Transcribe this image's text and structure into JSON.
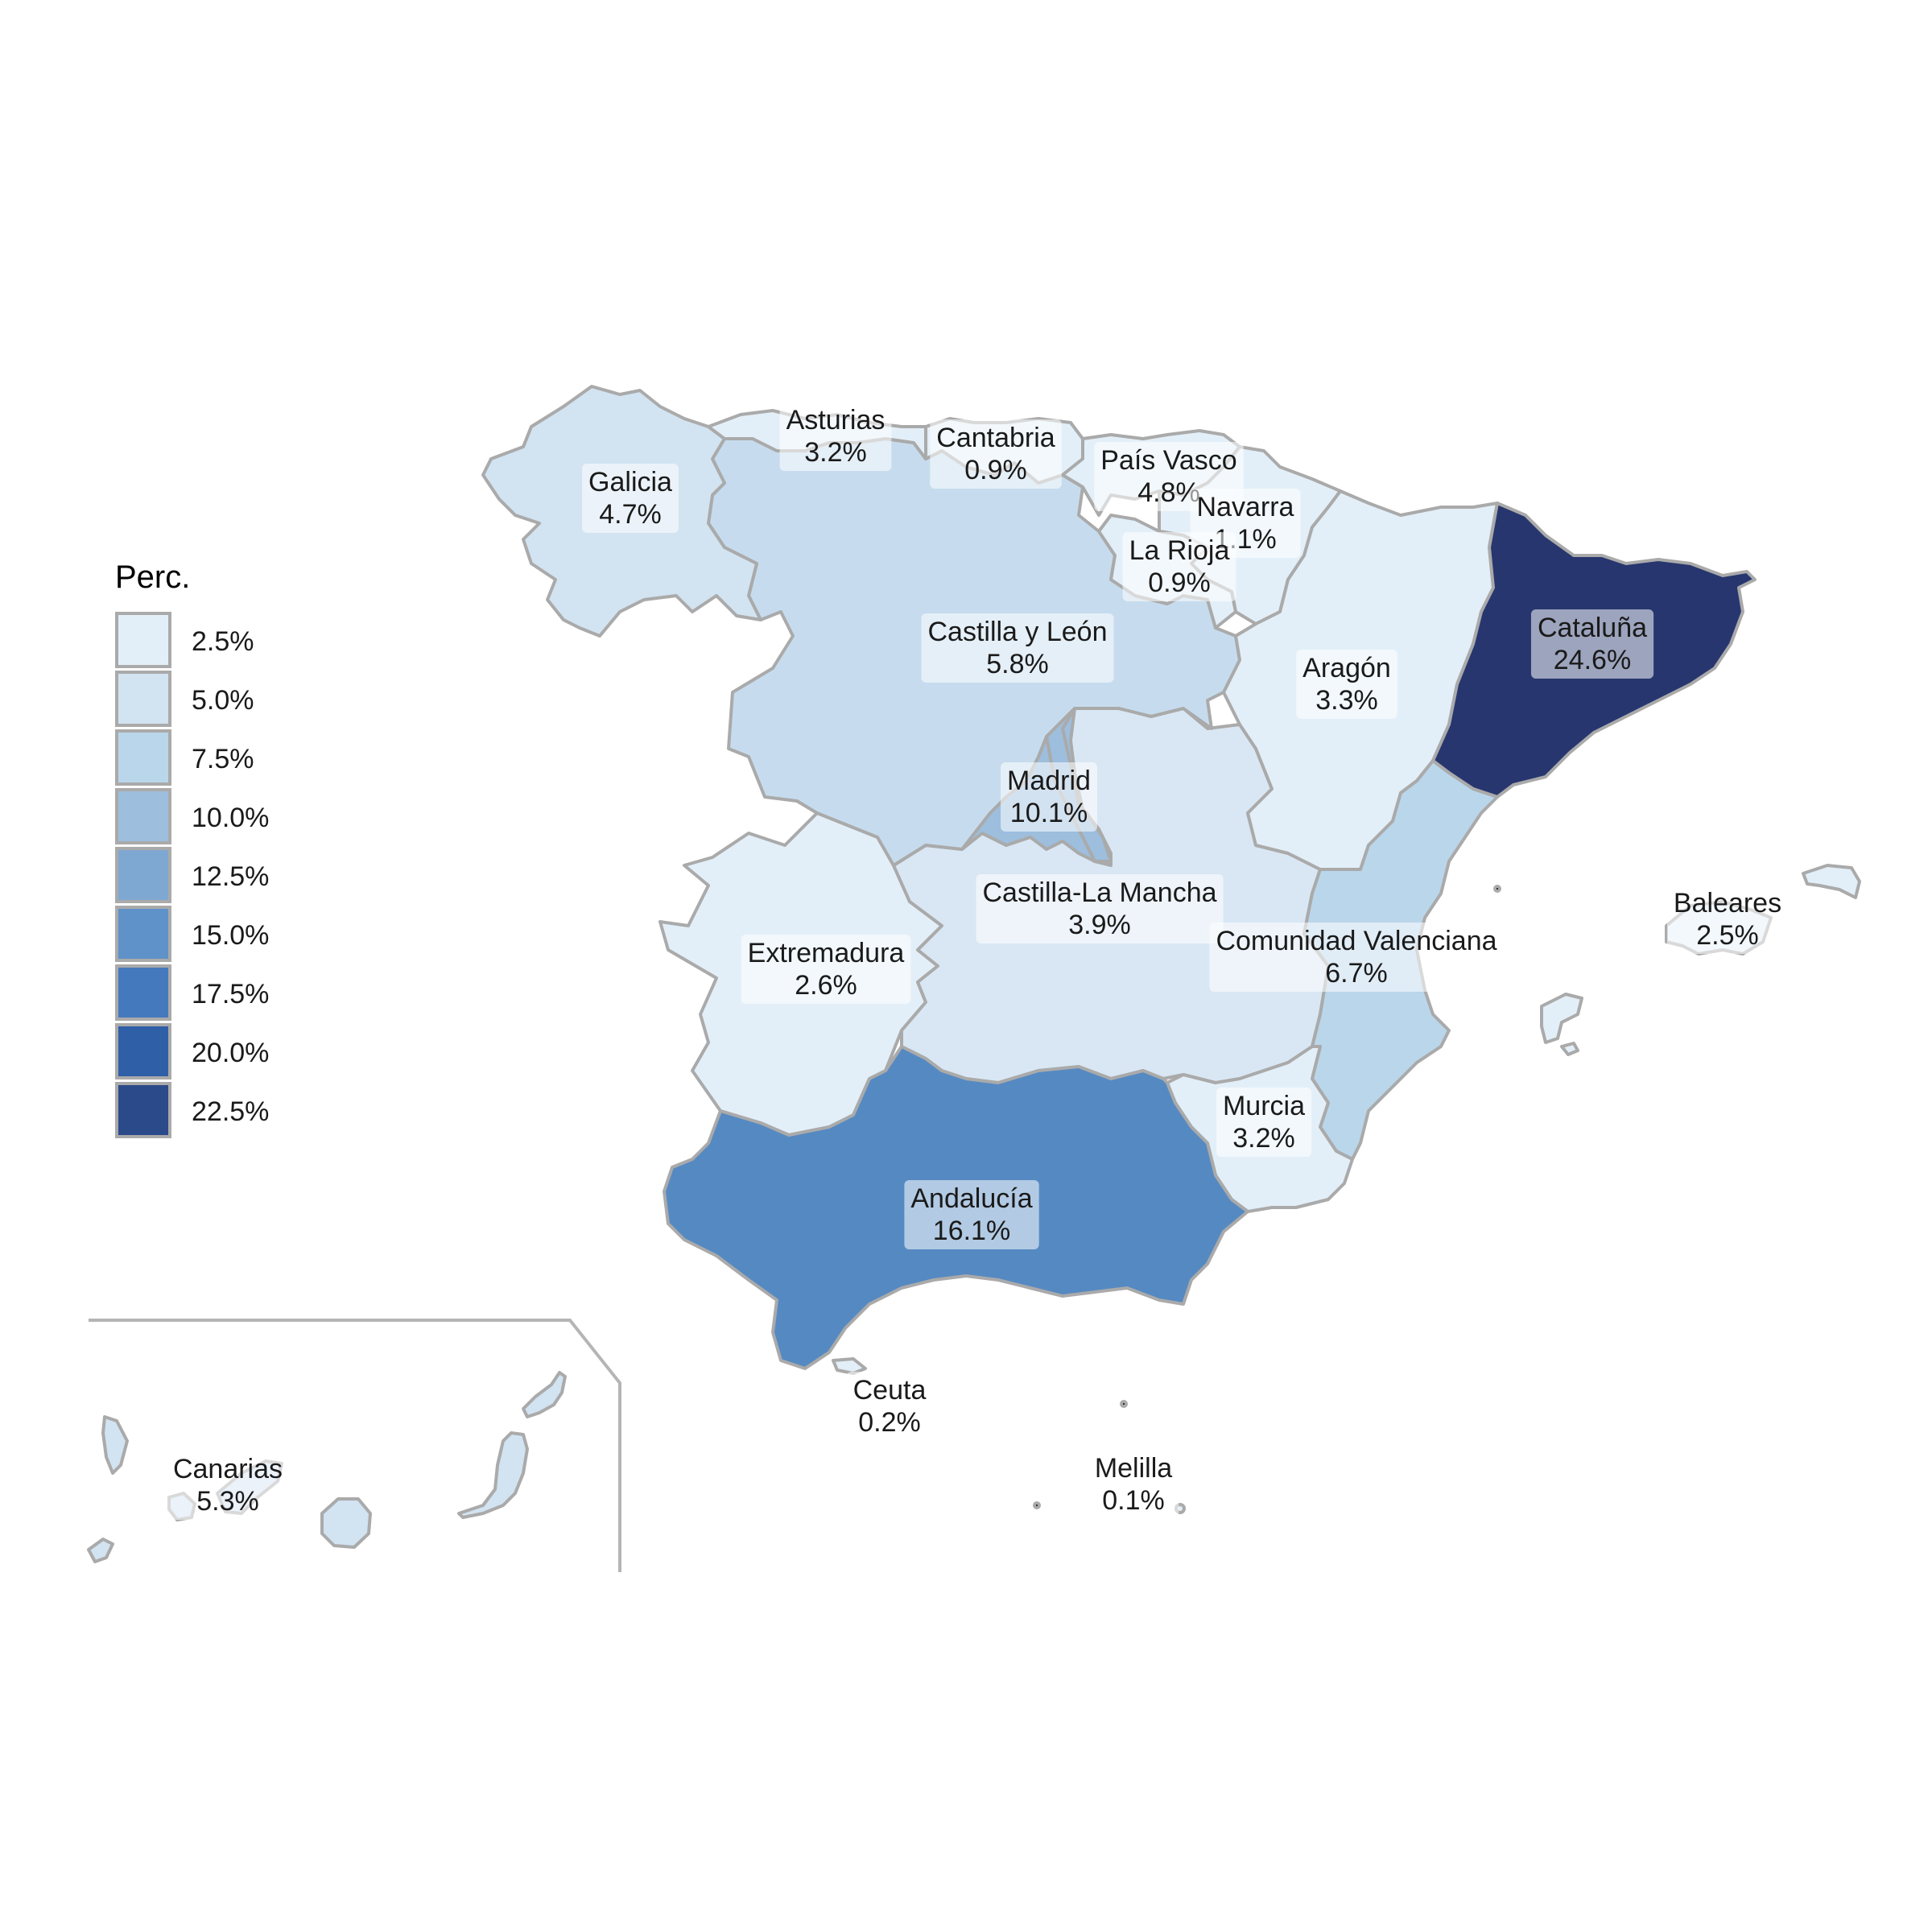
{
  "chart_data": {
    "type": "choropleth",
    "legend": {
      "title": "Perc.",
      "placement": "left",
      "items": [
        {
          "label": "2.5%",
          "color": "#e3eff8"
        },
        {
          "label": "5.0%",
          "color": "#d2e3f1"
        },
        {
          "label": "7.5%",
          "color": "#bad6eb"
        },
        {
          "label": "10.0%",
          "color": "#9dbedd"
        },
        {
          "label": "12.5%",
          "color": "#7ea8d2"
        },
        {
          "label": "15.0%",
          "color": "#5e92c9"
        },
        {
          "label": "17.5%",
          "color": "#4579bd"
        },
        {
          "label": "20.0%",
          "color": "#2f5fa7"
        },
        {
          "label": "22.5%",
          "color": "#2b4a8a"
        }
      ]
    },
    "regions": [
      {
        "key": "galicia",
        "name": "Galicia",
        "value_label": "4.7%",
        "value": 4.7,
        "color": "#d2e3f1"
      },
      {
        "key": "asturias",
        "name": "Asturias",
        "value_label": "3.2%",
        "value": 3.2,
        "color": "#e3eff8"
      },
      {
        "key": "cantabria",
        "name": "Cantabria",
        "value_label": "0.9%",
        "value": 0.9,
        "color": "#e3eff8"
      },
      {
        "key": "pais_vasco",
        "name": "País Vasco",
        "value_label": "4.8%",
        "value": 4.8,
        "color": "#e3eff8"
      },
      {
        "key": "navarra",
        "name": "Navarra",
        "value_label": "1.1%",
        "value": 1.1,
        "color": "#e3eff8"
      },
      {
        "key": "la_rioja",
        "name": "La Rioja",
        "value_label": "0.9%",
        "value": 0.9,
        "color": "#e3eff8"
      },
      {
        "key": "castilla_leon",
        "name": "Castilla y León",
        "value_label": "5.8%",
        "value": 5.8,
        "color": "#c6dcee"
      },
      {
        "key": "aragon",
        "name": "Aragón",
        "value_label": "3.3%",
        "value": 3.3,
        "color": "#e3eff8"
      },
      {
        "key": "cataluna",
        "name": "Cataluña",
        "value_label": "24.6%",
        "value": 24.6,
        "color": "#27366e"
      },
      {
        "key": "madrid",
        "name": "Madrid",
        "value_label": "10.1%",
        "value": 10.1,
        "color": "#9dbedd"
      },
      {
        "key": "castilla_la_mancha",
        "name": "Castilla-La Mancha",
        "value_label": "3.9%",
        "value": 3.9,
        "color": "#d9e7f4"
      },
      {
        "key": "extremadura",
        "name": "Extremadura",
        "value_label": "2.6%",
        "value": 2.6,
        "color": "#e3eff8"
      },
      {
        "key": "valenciana",
        "name": "Comunidad Valenciana",
        "value_label": "6.7%",
        "value": 6.7,
        "color": "#bad6eb"
      },
      {
        "key": "murcia",
        "name": "Murcia",
        "value_label": "3.2%",
        "value": 3.2,
        "color": "#e3eff8"
      },
      {
        "key": "andalucia",
        "name": "Andalucía",
        "value_label": "16.1%",
        "value": 16.1,
        "color": "#5589c2"
      },
      {
        "key": "baleares",
        "name": "Baleares",
        "value_label": "2.5%",
        "value": 2.5,
        "color": "#e3eff8"
      },
      {
        "key": "canarias",
        "name": "Canarias",
        "value_label": "5.3%",
        "value": 5.3,
        "color": "#d2e3f1"
      },
      {
        "key": "ceuta",
        "name": "Ceuta",
        "value_label": "0.2%",
        "value": 0.2,
        "color": "#e3eff8"
      },
      {
        "key": "melilla",
        "name": "Melilla",
        "value_label": "0.1%",
        "value": 0.1,
        "color": "#e3eff8"
      }
    ]
  }
}
